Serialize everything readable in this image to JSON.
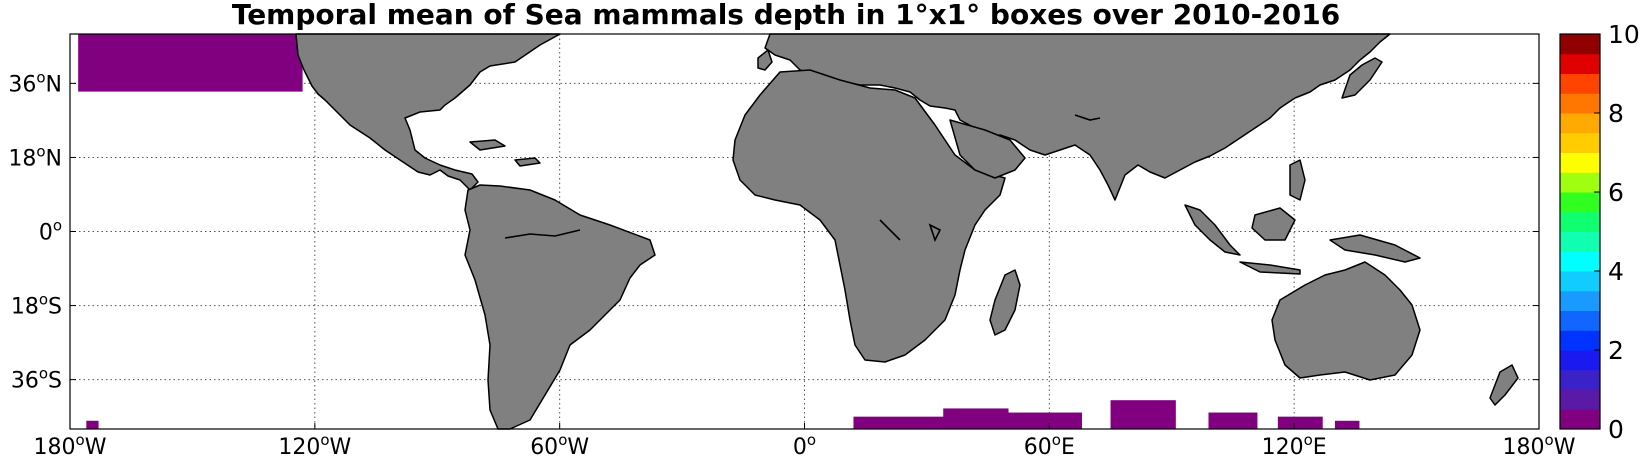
{
  "title": "Temporal mean of Sea mammals depth in 1°x1° boxes over 2010-2016",
  "map": {
    "projection": "equirectangular",
    "lon_range": [
      -180,
      180
    ],
    "lat_range": [
      -48,
      48
    ],
    "grid": "dotted",
    "land_color": "#808080",
    "ocean_color": "#ffffff",
    "x_ticks": [
      {
        "lon": -180,
        "label": "180°W",
        "deg": "180",
        "hemi": "W"
      },
      {
        "lon": -120,
        "label": "120°W",
        "deg": "120",
        "hemi": "W"
      },
      {
        "lon": -60,
        "label": "60°W",
        "deg": "60",
        "hemi": "W"
      },
      {
        "lon": 0,
        "label": "0°",
        "deg": "0",
        "hemi": ""
      },
      {
        "lon": 60,
        "label": "60°E",
        "deg": "60",
        "hemi": "E"
      },
      {
        "lon": 120,
        "label": "120°E",
        "deg": "120",
        "hemi": "E"
      },
      {
        "lon": 180,
        "label": "180°W",
        "deg": "180",
        "hemi": "W"
      }
    ],
    "y_ticks": [
      {
        "lat": 36,
        "label": "36°N",
        "deg": "36",
        "hemi": "N"
      },
      {
        "lat": 18,
        "label": "18°N",
        "deg": "18",
        "hemi": "N"
      },
      {
        "lat": 0,
        "label": "0°",
        "deg": "0",
        "hemi": ""
      },
      {
        "lat": -18,
        "label": "18°S",
        "deg": "18",
        "hemi": "S"
      },
      {
        "lat": -36,
        "label": "36°S",
        "deg": "36",
        "hemi": "S"
      }
    ]
  },
  "colorbar": {
    "min": 0,
    "max": 10,
    "levels": 20,
    "tick_labels": [
      "0",
      "2",
      "4",
      "6",
      "8",
      "10"
    ],
    "colors": [
      "#800080",
      "#5a1aa6",
      "#3a22c8",
      "#1a1af0",
      "#0033ff",
      "#1066ff",
      "#1a99ff",
      "#10ccff",
      "#00ffff",
      "#10ffb0",
      "#10ff70",
      "#30ff20",
      "#a0ff10",
      "#ffff00",
      "#ffcc00",
      "#ffaa00",
      "#ff7700",
      "#ff4400",
      "#e00000",
      "#900000"
    ]
  },
  "chart_data": {
    "type": "heatmap",
    "title": "Temporal mean of Sea mammals depth in 1°x1° boxes over 2010-2016",
    "xlabel": "",
    "ylabel": "",
    "xlim": [
      -180,
      180
    ],
    "ylim": [
      -48,
      48
    ],
    "value_range": [
      0,
      10
    ],
    "colormap": "jet",
    "cells_value_approx": 0,
    "regions": [
      {
        "name": "",
        "lon": [
          -178,
          -124
        ],
        "lat": [
          34,
          47
        ],
        "value": 0
      },
      {
        "name": "",
        "lon": [
          -176,
          -174
        ],
        "lat": [
          -47,
          -48
        ],
        "value": 0
      },
      {
        "name": "",
        "lon": [
          12,
          34
        ],
        "lat": [
          -46,
          -48
        ],
        "value": 0
      },
      {
        "name": "",
        "lon": [
          34,
          49
        ],
        "lat": [
          -44,
          -48
        ],
        "value": 0
      },
      {
        "name": "",
        "lon": [
          49,
          67
        ],
        "lat": [
          -45,
          -48
        ],
        "value": 0
      },
      {
        "name": "",
        "lon": [
          75,
          90
        ],
        "lat": [
          -42,
          -48
        ],
        "value": 0
      },
      {
        "name": "",
        "lon": [
          99,
          110
        ],
        "lat": [
          -45,
          -48
        ],
        "value": 0
      },
      {
        "name": "",
        "lon": [
          116,
          126
        ],
        "lat": [
          -46,
          -48
        ],
        "value": 0
      },
      {
        "name": "",
        "lon": [
          130,
          135
        ],
        "lat": [
          -47,
          -48
        ],
        "value": 0
      }
    ]
  }
}
